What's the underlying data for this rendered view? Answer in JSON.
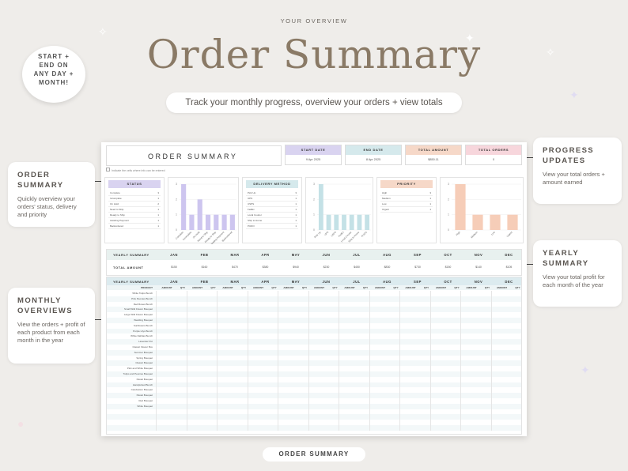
{
  "header": {
    "eyebrow": "YOUR OVERVIEW",
    "title": "Order Summary",
    "subtitle": "Track your monthly progress, overview your orders + view totals"
  },
  "badge": {
    "line1": "START +",
    "line2": "END ON",
    "line3": "ANY DAY +",
    "line4": "MONTH!"
  },
  "callouts": {
    "order_summary": {
      "title": "ORDER SUMMARY",
      "text": "Quickly overview your orders' status, delivery and priority"
    },
    "monthly": {
      "title": "MONTHLY OVERVIEWS",
      "text": "View the orders + profit of each product from each month in the year"
    },
    "progress": {
      "title": "PROGRESS UPDATES",
      "text": "View your total orders + amount earned"
    },
    "yearly": {
      "title": "YEARLY SUMMARY",
      "text": "View your total profit for each month of the year"
    }
  },
  "footer": {
    "label": "ORDER SUMMARY"
  },
  "sheet": {
    "title": "ORDER SUMMARY",
    "hint": "Indicate the cells where info can be entered",
    "stats": [
      {
        "label": "START DATE",
        "value": "9 Apr 2025",
        "color": "#d9d3f0"
      },
      {
        "label": "END DATE",
        "value": "8 Apr 2025",
        "color": "#d5e9ec"
      },
      {
        "label": "TOTAL AMOUNT",
        "value": "$850.11",
        "color": "#f6d8c8"
      },
      {
        "label": "TOTAL ORDERS",
        "value": "0",
        "color": "#f7d6dc"
      }
    ],
    "status": {
      "title": "STATUS",
      "color": "#d9d3f0",
      "bar_color": "#cdc5ef",
      "rows": [
        [
          "Complete",
          "3"
        ],
        [
          "Incomplete",
          "1"
        ],
        [
          "On Hold",
          "2"
        ],
        [
          "Need to Ship",
          "1"
        ],
        [
          "Ready to Ship",
          "1"
        ],
        [
          "Awaiting Payment",
          "1"
        ],
        [
          "Backordered",
          "1"
        ]
      ]
    },
    "delivery": {
      "title": "DELIVERY METHOD",
      "color": "#d5e9ec",
      "bar_color": "#c4e1e6",
      "rows": [
        [
          "Pick Up",
          "3"
        ],
        [
          "UPS",
          "1"
        ],
        [
          "USPS",
          "1"
        ],
        [
          "FedEx",
          "1"
        ],
        [
          "Local Courier",
          "1"
        ],
        [
          "Ship to Home",
          "1"
        ],
        [
          "PUDO",
          "1"
        ]
      ]
    },
    "priority": {
      "title": "PRIORITY",
      "color": "#f6d8c8",
      "bar_color": "#f6cdb8",
      "rows": [
        [
          "High",
          "3"
        ],
        [
          "Medium",
          "1"
        ],
        [
          "Low",
          "1"
        ],
        [
          "Urgent",
          "1"
        ]
      ]
    },
    "yearly": {
      "title": "YEARLY SUMMARY",
      "row_label": "TOTAL AMOUNT",
      "months": [
        "JAN",
        "FEB",
        "MAR",
        "APR",
        "MAY",
        "JUN",
        "JUL",
        "AUG",
        "SEP",
        "OCT",
        "NOV",
        "DEC"
      ],
      "totals": [
        "$150",
        "$160",
        "$470",
        "$380",
        "$940",
        "$230",
        "$450",
        "$830",
        "$730",
        "$150",
        "$140",
        "$105"
      ]
    },
    "monthly": {
      "title": "YEARLY SUMMARY",
      "months": [
        "JAN",
        "FEB",
        "MAR",
        "APR",
        "MAY",
        "JUN",
        "JUL",
        "AUG",
        "SEP",
        "OCT",
        "NOV",
        "DEC"
      ],
      "product_label": "PRODUCT",
      "amount_label": "AMOUNT",
      "qty_label": "QTY",
      "products": [
        "White Tulips Bunch",
        "Pink Peonies Bunch",
        "Red Roses Bunch",
        "Small Wild Flower Bouquet",
        "Large Wild Flower Bouquet",
        "Wedding Bouquet",
        "Sunflowers Bunch",
        "Purple Lilys Bunch",
        "White Dahlias Bunch",
        "Lavender Pot",
        "Classic Flower Box",
        "Summer Bouquet",
        "Spring Bouquet",
        "Classic Bouquet",
        "Pink and White Bouquet",
        "Tulips and Peonies Bouquet",
        "Pastel Bouquet",
        "Handpicked Bunch",
        "Celebration Bouquet",
        "Pastel Bouquet",
        "Red Bouquet",
        "White Bouquet",
        "",
        "",
        "",
        ""
      ]
    }
  },
  "chart_data": [
    {
      "type": "bar",
      "title": "STATUS",
      "categories": [
        "Complete",
        "Incomplete",
        "On Hold",
        "Need to Ship",
        "Ready to Ship",
        "Awaiting Payment",
        "Backordered"
      ],
      "values": [
        3,
        1,
        2,
        1,
        1,
        1,
        1
      ],
      "ylim": [
        0,
        3
      ]
    },
    {
      "type": "bar",
      "title": "DELIVERY METHOD",
      "categories": [
        "Pick Up",
        "UPS",
        "USPS",
        "FedEx",
        "Local Courier",
        "Ship to Home",
        "PUDO"
      ],
      "values": [
        3,
        1,
        1,
        1,
        1,
        1,
        1
      ],
      "ylim": [
        0,
        3
      ]
    },
    {
      "type": "bar",
      "title": "PRIORITY",
      "categories": [
        "High",
        "Medium",
        "Low",
        "Urgent"
      ],
      "values": [
        3,
        1,
        1,
        1
      ],
      "ylim": [
        0,
        3
      ]
    }
  ]
}
